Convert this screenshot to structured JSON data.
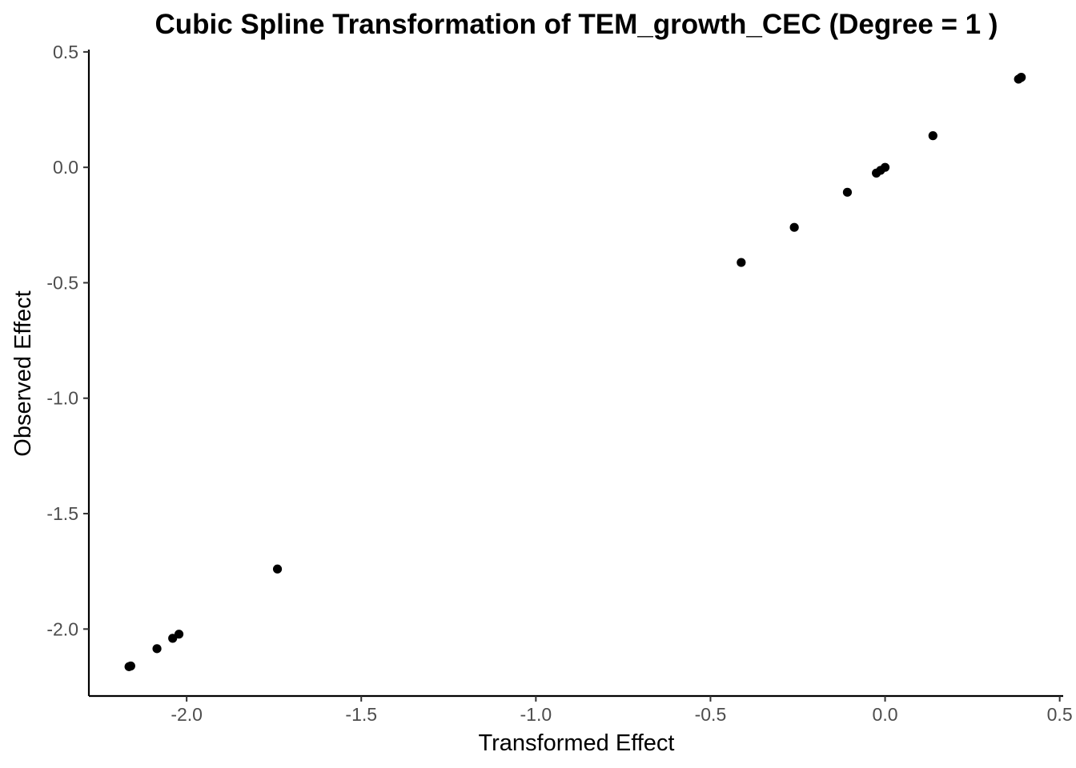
{
  "chart_data": {
    "type": "scatter",
    "title": "Cubic Spline Transformation of TEM_growth_CEC (Degree = 1 )",
    "xlabel": "Transformed Effect",
    "ylabel": "Observed Effect",
    "xlim": [
      -2.28,
      0.51
    ],
    "ylim": [
      -2.29,
      0.51
    ],
    "xticks": [
      -2.0,
      -1.5,
      -1.0,
      -0.5,
      0.0,
      0.5
    ],
    "xtick_labels": [
      "-2.0",
      "-1.5",
      "-1.0",
      "-0.5",
      "0.0",
      "0.5"
    ],
    "yticks": [
      -2.0,
      -1.5,
      -1.0,
      -0.5,
      0.0,
      0.5
    ],
    "ytick_labels": [
      "-2.0",
      "-1.5",
      "-1.0",
      "-0.5",
      "0.0",
      "0.5"
    ],
    "grid": false,
    "legend": "none",
    "point_color": "#000000",
    "points": [
      {
        "x": -2.16,
        "y": -2.16
      },
      {
        "x": -2.165,
        "y": -2.163
      },
      {
        "x": -2.085,
        "y": -2.085
      },
      {
        "x": -2.04,
        "y": -2.04
      },
      {
        "x": -2.022,
        "y": -2.022
      },
      {
        "x": -1.74,
        "y": -1.74
      },
      {
        "x": -0.412,
        "y": -0.412
      },
      {
        "x": -0.26,
        "y": -0.26
      },
      {
        "x": -0.108,
        "y": -0.108
      },
      {
        "x": -0.025,
        "y": -0.025
      },
      {
        "x": -0.013,
        "y": -0.013
      },
      {
        "x": 0.0,
        "y": 0.0
      },
      {
        "x": 0.137,
        "y": 0.137
      },
      {
        "x": 0.382,
        "y": 0.382
      },
      {
        "x": 0.388,
        "y": 0.388
      },
      {
        "x": 0.39,
        "y": 0.39
      }
    ]
  }
}
